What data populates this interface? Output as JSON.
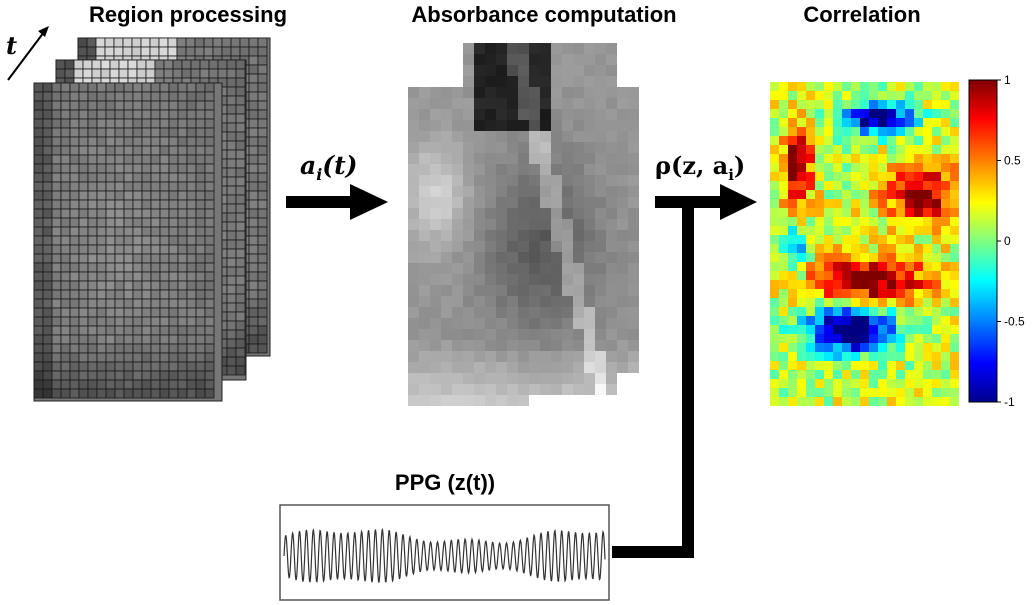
{
  "titles": {
    "region_processing": "Region processing",
    "absorbance_computation": "Absorbance computation",
    "correlation": "Correlation",
    "ppg": "PPG (z(t))"
  },
  "labels": {
    "time_axis": "t",
    "absorbance_symbol": "a",
    "absorbance_subscript": "i",
    "absorbance_arg": "(t)",
    "correlation_symbol": "ρ(z, a",
    "correlation_subscript": "i",
    "correlation_close": ")"
  },
  "colorbar": {
    "ticks": [
      "1",
      "0.5",
      "0",
      "-0.5",
      "-1"
    ],
    "colors": [
      "#7f0000",
      "#ff0000",
      "#ffff00",
      "#00ffff",
      "#0000ff",
      "#00008f"
    ]
  },
  "colors": {
    "arrow": "#000000",
    "grid_line": "#1a1a1a",
    "frame": "#555555"
  }
}
